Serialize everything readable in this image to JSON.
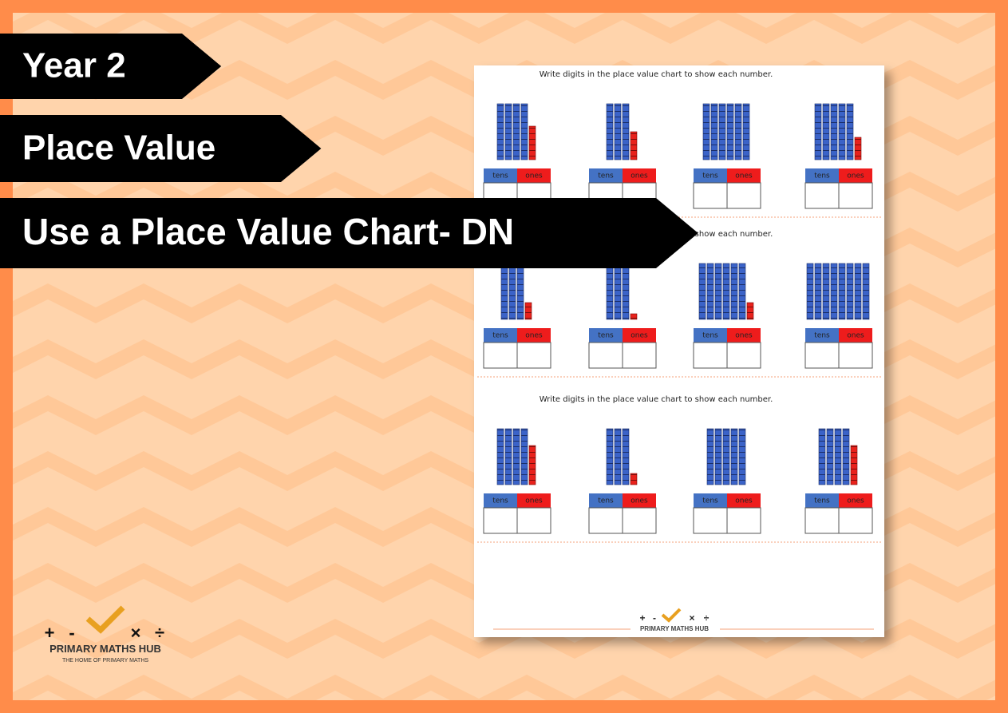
{
  "banners": [
    "Year 2",
    "Place Value",
    "Use a Place Value Chart- DN"
  ],
  "worksheet": {
    "sections": [
      {
        "instruction": "Write digits in the place value chart to show each number.",
        "items": [
          {
            "tens": 4,
            "ones": 6,
            "header": [
              "tens",
              "ones"
            ]
          },
          {
            "tens": 3,
            "ones": 5,
            "header": [
              "tens",
              "ones"
            ]
          },
          {
            "tens": 6,
            "ones": 0,
            "header": [
              "tens",
              "ones"
            ]
          },
          {
            "tens": 5,
            "ones": 4,
            "header": [
              "tens",
              "ones"
            ]
          }
        ]
      },
      {
        "instruction": "Write digits in the place value chart to show each number.",
        "items": [
          {
            "tens": 3,
            "ones": 3,
            "header": [
              "tens",
              "ones"
            ]
          },
          {
            "tens": 3,
            "ones": 1,
            "header": [
              "tens",
              "ones"
            ]
          },
          {
            "tens": 6,
            "ones": 3,
            "header": [
              "tens",
              "ones"
            ]
          },
          {
            "tens": 8,
            "ones": 0,
            "header": [
              "tens",
              "ones"
            ]
          }
        ]
      },
      {
        "instruction": "Write digits in the place value chart to show each number.",
        "items": [
          {
            "tens": 4,
            "ones": 7,
            "header": [
              "tens",
              "ones"
            ]
          },
          {
            "tens": 3,
            "ones": 2,
            "header": [
              "tens",
              "ones"
            ]
          },
          {
            "tens": 5,
            "ones": 0,
            "header": [
              "tens",
              "ones"
            ]
          },
          {
            "tens": 4,
            "ones": 7,
            "header": [
              "tens",
              "ones"
            ]
          }
        ]
      }
    ],
    "footer_logo": {
      "symbols": [
        "+",
        "-",
        "×",
        "÷"
      ],
      "name": "PRIMARY MATHS HUB"
    }
  },
  "logo": {
    "symbols": [
      "+",
      "-",
      "×",
      "÷"
    ],
    "name": "PRIMARY MATHS HUB",
    "tagline": "THE HOME OF PRIMARY MATHS"
  }
}
